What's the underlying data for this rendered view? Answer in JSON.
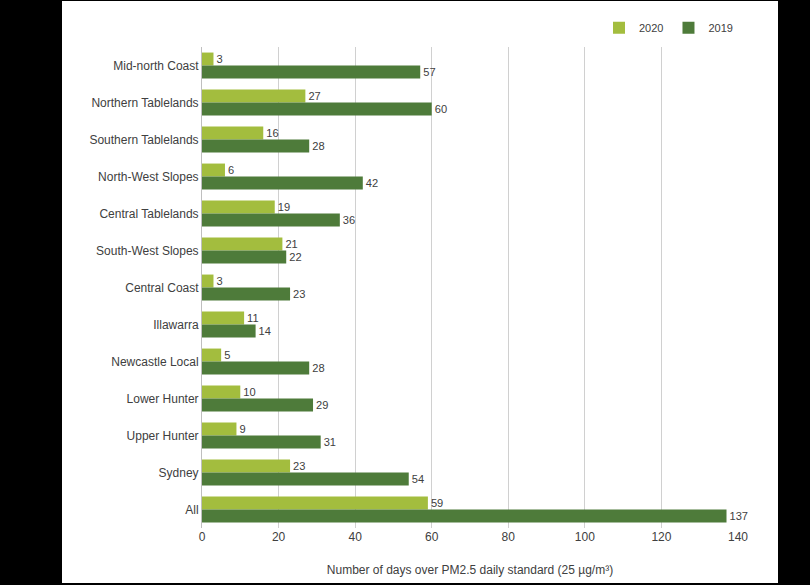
{
  "chart_data": {
    "type": "bar",
    "orientation": "horizontal",
    "categories": [
      "Mid-north Coast",
      "Northern Tablelands",
      "Southern Tablelands",
      "North-West Slopes",
      "Central Tablelands",
      "South-West Slopes",
      "Central Coast",
      "Illawarra",
      "Newcastle Local",
      "Lower Hunter",
      "Upper Hunter",
      "Sydney",
      "All"
    ],
    "series": [
      {
        "name": "2020",
        "color": "#a3bd3e",
        "values": [
          3,
          27,
          16,
          6,
          19,
          21,
          3,
          11,
          5,
          10,
          9,
          23,
          59
        ]
      },
      {
        "name": "2019",
        "color": "#4e7b3a",
        "values": [
          57,
          60,
          28,
          42,
          36,
          22,
          23,
          14,
          28,
          29,
          31,
          54,
          137
        ]
      }
    ],
    "xlabel": "Number of days over PM2.5 daily standard (25 µg/m³)",
    "xlim": [
      0,
      140
    ],
    "xticks": [
      0,
      20,
      40,
      60,
      80,
      100,
      120,
      140
    ],
    "grid": true,
    "legend": "top-right",
    "data_labels": true
  }
}
